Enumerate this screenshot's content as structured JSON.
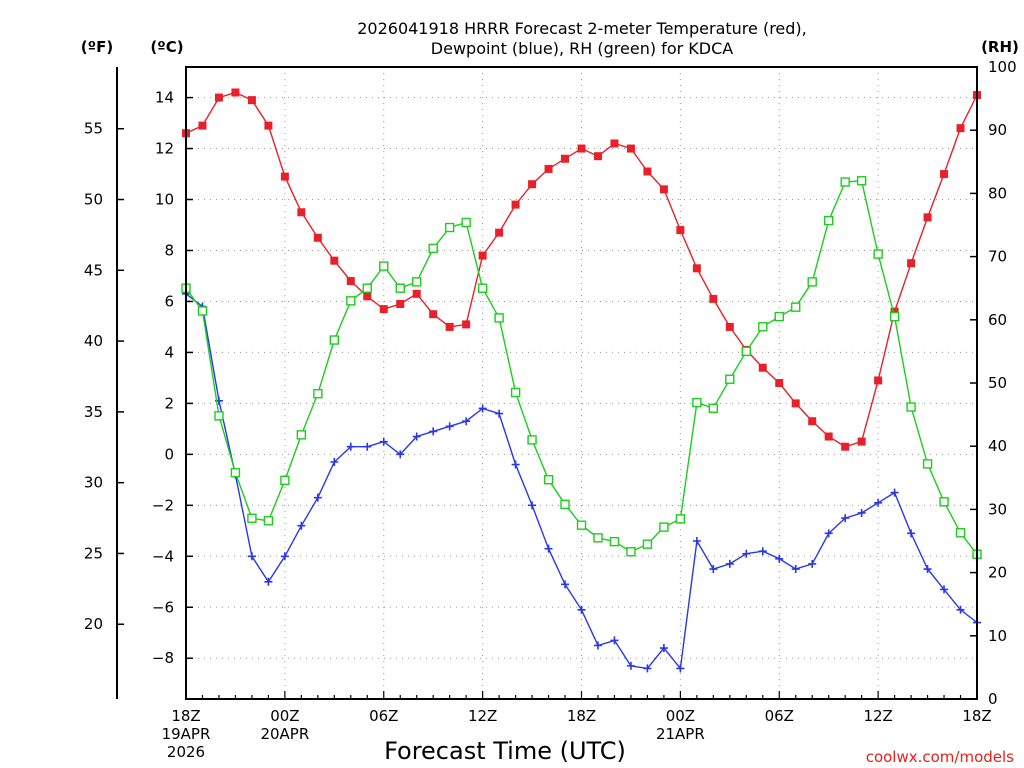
{
  "chart_data": {
    "type": "line",
    "title_line1": "2026041918 HRRR Forecast 2-meter Temperature (red),",
    "title_line2": "Dewpoint (blue), RH (green) for KDCA",
    "xlabel": "Forecast Time (UTC)",
    "credit": "coolwx.com/models",
    "left_unit_f": "(ºF)",
    "left_unit_c": "(ºC)",
    "right_unit": "(RH)",
    "x_range_hours": [
      0,
      48
    ],
    "y_c_range": [
      -9.6,
      15.2
    ],
    "y_rh_range": [
      0,
      100
    ],
    "y_c_ticks": [
      {
        "value": -8,
        "label": "−8"
      },
      {
        "value": -6,
        "label": "−6"
      },
      {
        "value": -4,
        "label": "−4"
      },
      {
        "value": -2,
        "label": "−2"
      },
      {
        "value": 0,
        "label": "0"
      },
      {
        "value": 2,
        "label": "2"
      },
      {
        "value": 4,
        "label": "4"
      },
      {
        "value": 6,
        "label": "6"
      },
      {
        "value": 8,
        "label": "8"
      },
      {
        "value": 10,
        "label": "10"
      },
      {
        "value": 12,
        "label": "12"
      },
      {
        "value": 14,
        "label": "14"
      }
    ],
    "y_f_ticks": [
      {
        "value": 20,
        "label": "20"
      },
      {
        "value": 25,
        "label": "25"
      },
      {
        "value": 30,
        "label": "30"
      },
      {
        "value": 35,
        "label": "35"
      },
      {
        "value": 40,
        "label": "40"
      },
      {
        "value": 45,
        "label": "45"
      },
      {
        "value": 50,
        "label": "50"
      },
      {
        "value": 55,
        "label": "55"
      }
    ],
    "y_rh_ticks": [
      {
        "value": 0,
        "label": "0"
      },
      {
        "value": 10,
        "label": "10"
      },
      {
        "value": 20,
        "label": "20"
      },
      {
        "value": 30,
        "label": "30"
      },
      {
        "value": 40,
        "label": "40"
      },
      {
        "value": 50,
        "label": "50"
      },
      {
        "value": 60,
        "label": "60"
      },
      {
        "value": 70,
        "label": "70"
      },
      {
        "value": 80,
        "label": "80"
      },
      {
        "value": 90,
        "label": "90"
      },
      {
        "value": 100,
        "label": "100"
      }
    ],
    "x_ticks": [
      {
        "hour": 0,
        "lines": [
          "18Z",
          "19APR",
          "2026"
        ]
      },
      {
        "hour": 6,
        "lines": [
          "00Z",
          "20APR"
        ]
      },
      {
        "hour": 12,
        "lines": [
          "06Z"
        ]
      },
      {
        "hour": 18,
        "lines": [
          "12Z"
        ]
      },
      {
        "hour": 24,
        "lines": [
          "18Z"
        ]
      },
      {
        "hour": 30,
        "lines": [
          "00Z",
          "21APR"
        ]
      },
      {
        "hour": 36,
        "lines": [
          "06Z"
        ]
      },
      {
        "hour": 42,
        "lines": [
          "12Z"
        ]
      },
      {
        "hour": 48,
        "lines": [
          "18Z"
        ]
      }
    ],
    "x_grid_hours": [
      6,
      12,
      18,
      24,
      30,
      36,
      42
    ],
    "series": [
      {
        "name": "2-meter Temperature",
        "axis": "celsius",
        "color": "#e8202a",
        "marker": "filled-square",
        "values": [
          12.6,
          12.9,
          14.0,
          14.2,
          13.9,
          12.9,
          10.9,
          9.5,
          8.5,
          7.6,
          6.8,
          6.2,
          5.7,
          5.9,
          6.3,
          5.5,
          5.0,
          5.1,
          7.8,
          8.7,
          9.8,
          10.6,
          11.2,
          11.6,
          12.0,
          11.7,
          12.2,
          12.0,
          11.1,
          10.4,
          8.8,
          7.3,
          6.1,
          5.0,
          4.1,
          3.4,
          2.8,
          2.0,
          1.3,
          0.7,
          0.3,
          0.5,
          2.9,
          5.6,
          7.5,
          9.3,
          11.0,
          12.8,
          14.1
        ]
      },
      {
        "name": "Dewpoint",
        "axis": "celsius",
        "color": "#2838e8",
        "marker": "plus",
        "values": [
          6.3,
          5.8,
          2.1,
          -0.8,
          -4.0,
          -5.0,
          -4.0,
          -2.8,
          -1.7,
          -0.3,
          0.3,
          0.3,
          0.5,
          0.0,
          0.7,
          0.9,
          1.1,
          1.3,
          1.8,
          1.6,
          -0.4,
          -2.0,
          -3.7,
          -5.1,
          -6.1,
          -7.5,
          -7.3,
          -8.3,
          -8.4,
          -7.6,
          -8.4,
          -3.4,
          -4.5,
          -4.3,
          -3.9,
          -3.8,
          -4.1,
          -4.5,
          -4.3,
          -3.1,
          -2.5,
          -2.3,
          -1.9,
          -1.5,
          -3.1,
          -4.5,
          -5.3,
          -6.1,
          -6.6
        ]
      },
      {
        "name": "RH",
        "axis": "rh",
        "color": "#1cce1c",
        "marker": "open-square",
        "values": [
          65.0,
          61.4,
          44.8,
          35.8,
          28.6,
          28.2,
          34.6,
          41.8,
          48.3,
          56.8,
          63.0,
          65.0,
          68.5,
          65.0,
          66.0,
          71.3,
          74.6,
          75.4,
          65.0,
          60.3,
          48.5,
          41.0,
          34.7,
          30.8,
          27.5,
          25.5,
          24.9,
          23.3,
          24.5,
          27.2,
          28.5,
          46.9,
          46.0,
          50.6,
          55.0,
          58.9,
          60.5,
          62.0,
          66.0,
          75.7,
          81.8,
          82.0,
          70.4,
          60.5,
          46.2,
          37.2,
          31.2,
          26.3,
          22.9
        ]
      }
    ]
  }
}
